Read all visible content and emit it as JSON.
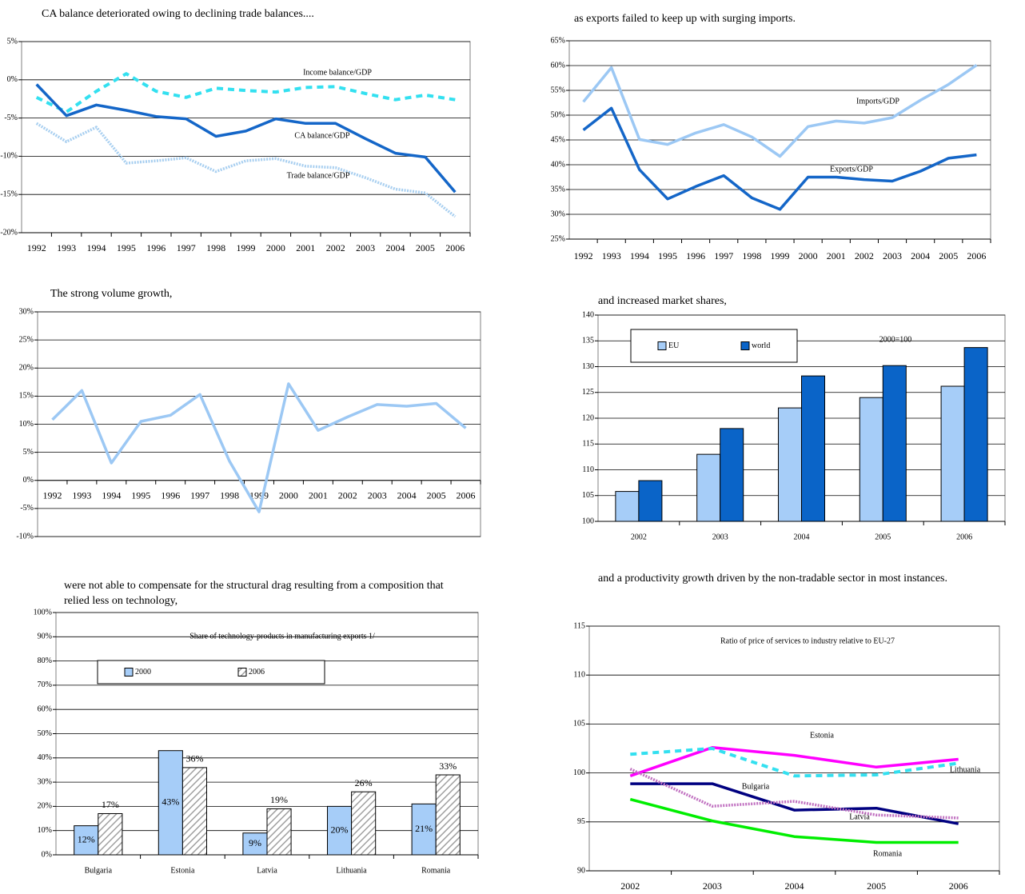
{
  "chart_data": [
    {
      "type": "line",
      "title": "CA balance deteriorated owing to declining trade balances....",
      "categories": [
        "1992",
        "1993",
        "1994",
        "1995",
        "1996",
        "1997",
        "1998",
        "1999",
        "2000",
        "2001",
        "2002",
        "2003",
        "2004",
        "2005",
        "2006"
      ],
      "ylim": [
        -20,
        5
      ],
      "yticks": [
        {
          "value": -20,
          "label": "-20%"
        },
        {
          "value": -15,
          "label": "-15%"
        },
        {
          "value": -10,
          "label": "-10%"
        },
        {
          "value": -5,
          "label": "-5%"
        },
        {
          "value": 0,
          "label": "0%"
        },
        {
          "value": 5,
          "label": "5%"
        }
      ],
      "grid": true,
      "series": [
        {
          "name": "Income balance/GDP",
          "color": "#33e0f0",
          "style": "dashed",
          "values": [
            -2.3,
            -4.2,
            -1.5,
            0.8,
            -1.5,
            -2.3,
            -1.1,
            -1.4,
            -1.6,
            -1.0,
            -0.9,
            -1.8,
            -2.6,
            -2.0,
            -2.6
          ]
        },
        {
          "name": "CA balance/GDP",
          "color": "#1466c8",
          "style": "solid",
          "values": [
            -0.6,
            -4.7,
            -3.3,
            -4.0,
            -4.8,
            -5.1,
            -7.4,
            -6.7,
            -5.1,
            -5.7,
            -5.7,
            -7.7,
            -9.6,
            -10.1,
            -14.7
          ]
        },
        {
          "name": "Trade balance/GDP",
          "color": "#a8cff0",
          "style": "dotted",
          "values": [
            -5.7,
            -8.1,
            -6.2,
            -10.9,
            -10.6,
            -10.2,
            -12.0,
            -10.6,
            -10.3,
            -11.3,
            -11.5,
            -12.8,
            -14.3,
            -14.8,
            -17.9
          ]
        }
      ]
    },
    {
      "type": "line",
      "title": "as exports failed to keep up with surging imports.",
      "categories": [
        "1992",
        "1993",
        "1994",
        "1995",
        "1996",
        "1997",
        "1998",
        "1999",
        "2000",
        "2001",
        "2002",
        "2003",
        "2004",
        "2005",
        "2006"
      ],
      "ylim": [
        25,
        65
      ],
      "yticks": [
        {
          "value": 25,
          "label": "25%"
        },
        {
          "value": 30,
          "label": "30%"
        },
        {
          "value": 35,
          "label": "35%"
        },
        {
          "value": 40,
          "label": "40%"
        },
        {
          "value": 45,
          "label": "45%"
        },
        {
          "value": 50,
          "label": "50%"
        },
        {
          "value": 55,
          "label": "55%"
        },
        {
          "value": 60,
          "label": "60%"
        },
        {
          "value": 65,
          "label": "65%"
        }
      ],
      "grid": true,
      "series": [
        {
          "name": "Imports/GDP",
          "color": "#9cc8f4",
          "style": "solid",
          "values": [
            52.7,
            59.6,
            45.1,
            44.1,
            46.4,
            48.1,
            45.6,
            41.7,
            47.7,
            48.8,
            48.4,
            49.5,
            53.0,
            56.2,
            60.1
          ]
        },
        {
          "name": "Exports/GDP",
          "color": "#1466c8",
          "style": "solid",
          "values": [
            47.0,
            51.4,
            39.0,
            33.1,
            35.6,
            37.8,
            33.3,
            31.0,
            37.5,
            37.5,
            37.0,
            36.7,
            38.7,
            41.3,
            42.0
          ]
        }
      ]
    },
    {
      "type": "line",
      "title": "The strong volume growth,",
      "categories": [
        "1992",
        "1993",
        "1994",
        "1995",
        "1996",
        "1997",
        "1998",
        "1999",
        "2000",
        "2001",
        "2002",
        "2003",
        "2004",
        "2005",
        "2006"
      ],
      "ylim": [
        -10,
        30
      ],
      "yticks": [
        {
          "value": -10,
          "label": "-10%"
        },
        {
          "value": -5,
          "label": "-5%"
        },
        {
          "value": 0,
          "label": "0%"
        },
        {
          "value": 5,
          "label": "5%"
        },
        {
          "value": 10,
          "label": "10%"
        },
        {
          "value": 15,
          "label": "15%"
        },
        {
          "value": 20,
          "label": "20%"
        },
        {
          "value": 25,
          "label": "25%"
        },
        {
          "value": 30,
          "label": "30%"
        }
      ],
      "grid": true,
      "series": [
        {
          "color": "#9cc8f4",
          "style": "solid",
          "values": [
            10.8,
            16.0,
            3.1,
            10.5,
            11.6,
            15.3,
            3.4,
            -5.6,
            17.2,
            8.9,
            11.3,
            13.5,
            13.2,
            13.7,
            9.3
          ]
        }
      ]
    },
    {
      "type": "bar",
      "title": "and increased market shares,",
      "annotation": "2000=100",
      "categories": [
        "2002",
        "2003",
        "2004",
        "2005",
        "2006"
      ],
      "ylim": [
        100,
        140
      ],
      "yticks": [
        100,
        105,
        110,
        115,
        120,
        125,
        130,
        135,
        140
      ],
      "grid": true,
      "legend": "upper left",
      "series": [
        {
          "name": "EU",
          "color": "#a6cdf8",
          "values": [
            105.8,
            113.0,
            122.0,
            124.0,
            126.2
          ]
        },
        {
          "name": "world",
          "color": "#0a64c8",
          "values": [
            107.9,
            118.0,
            128.2,
            130.2,
            133.7
          ]
        }
      ]
    },
    {
      "type": "bar",
      "title": "were not able to compensate for the structural drag resulting from a composition that relied less on technology,",
      "subtitle": "Share of technology-products in manufacturing exports 1/",
      "categories": [
        "Bulgaria",
        "Estonia",
        "Latvia",
        "Lithuania",
        "Romania"
      ],
      "ylim": [
        0,
        100
      ],
      "yticks": [
        {
          "value": 0,
          "label": "0%"
        },
        {
          "value": 10,
          "label": "10%"
        },
        {
          "value": 20,
          "label": "20%"
        },
        {
          "value": 30,
          "label": "30%"
        },
        {
          "value": 40,
          "label": "40%"
        },
        {
          "value": 50,
          "label": "50%"
        },
        {
          "value": 60,
          "label": "60%"
        },
        {
          "value": 70,
          "label": "70%"
        },
        {
          "value": 80,
          "label": "80%"
        },
        {
          "value": 90,
          "label": "90%"
        },
        {
          "value": 100,
          "label": "100%"
        }
      ],
      "grid": true,
      "legend": "upper center",
      "series": [
        {
          "name": "2000",
          "color": "#a6cdf8",
          "pattern": "solid",
          "values": [
            12,
            43,
            9,
            20,
            21
          ],
          "value_labels": [
            "12%",
            "43%",
            "9%",
            "20%",
            "21%"
          ]
        },
        {
          "name": "2006",
          "color": "#c0c0c0",
          "pattern": "hatch",
          "values": [
            17,
            36,
            19,
            26,
            33
          ],
          "value_labels": [
            "17%",
            "36%",
            "19%",
            "26%",
            "33%"
          ]
        }
      ]
    },
    {
      "type": "line",
      "title": "and a productivity growth driven by the non-tradable sector in most instances.",
      "subtitle": "Ratio of price of services to industry relative to EU-27",
      "categories": [
        "2002",
        "2003",
        "2004",
        "2005",
        "2006"
      ],
      "ylim": [
        90,
        115
      ],
      "yticks": [
        90,
        95,
        100,
        105,
        110,
        115
      ],
      "grid": true,
      "series": [
        {
          "name": "Estonia",
          "color": "#ff00ff",
          "style": "solid",
          "values": [
            99.7,
            102.6,
            101.8,
            100.6,
            101.4
          ]
        },
        {
          "name": "Lithuania",
          "color": "#33e0f0",
          "style": "dashed",
          "values": [
            101.9,
            102.5,
            99.7,
            99.8,
            101.0
          ]
        },
        {
          "name": "Bulgaria",
          "color": "#000080",
          "style": "solid",
          "values": [
            98.9,
            98.9,
            96.2,
            96.4,
            94.8
          ]
        },
        {
          "name": "Latvia",
          "color": "#c070c0",
          "style": "dotted",
          "values": [
            100.4,
            96.6,
            97.1,
            95.7,
            95.4
          ]
        },
        {
          "name": "Romania",
          "color": "#00ee00",
          "style": "solid",
          "values": [
            97.3,
            95.1,
            93.5,
            92.9,
            92.9
          ]
        }
      ]
    }
  ]
}
